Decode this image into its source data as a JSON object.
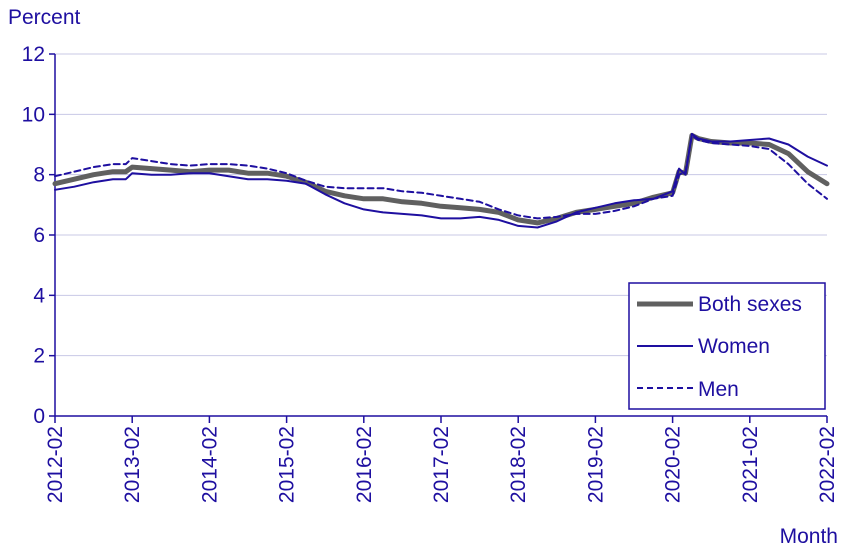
{
  "chart_data": {
    "type": "line",
    "ylabel": "Percent",
    "xlabel": "Month",
    "ylim": [
      0,
      12
    ],
    "y_ticks": [
      0,
      2,
      4,
      6,
      8,
      10,
      12
    ],
    "x_range": [
      "2012-02",
      "2022-02"
    ],
    "x_ticks": [
      "2012-02",
      "2013-02",
      "2014-02",
      "2015-02",
      "2016-02",
      "2017-02",
      "2018-02",
      "2019-02",
      "2020-02",
      "2021-02",
      "2022-02"
    ],
    "grid": "horizontal",
    "legend_position": "bottom-right",
    "series": [
      {
        "name": "Both sexes",
        "color": "#606060",
        "style": "thick-solid",
        "points": [
          [
            "2012-02",
            7.7
          ],
          [
            "2012-05",
            7.85
          ],
          [
            "2012-08",
            8.0
          ],
          [
            "2012-11",
            8.1
          ],
          [
            "2013-01",
            8.1
          ],
          [
            "2013-02",
            8.25
          ],
          [
            "2013-05",
            8.2
          ],
          [
            "2013-08",
            8.15
          ],
          [
            "2013-11",
            8.1
          ],
          [
            "2014-02",
            8.15
          ],
          [
            "2014-05",
            8.15
          ],
          [
            "2014-08",
            8.05
          ],
          [
            "2014-11",
            8.05
          ],
          [
            "2015-02",
            7.95
          ],
          [
            "2015-05",
            7.75
          ],
          [
            "2015-08",
            7.45
          ],
          [
            "2015-11",
            7.3
          ],
          [
            "2016-02",
            7.2
          ],
          [
            "2016-05",
            7.2
          ],
          [
            "2016-08",
            7.1
          ],
          [
            "2016-11",
            7.05
          ],
          [
            "2017-02",
            6.95
          ],
          [
            "2017-05",
            6.9
          ],
          [
            "2017-08",
            6.85
          ],
          [
            "2017-11",
            6.75
          ],
          [
            "2018-02",
            6.5
          ],
          [
            "2018-05",
            6.4
          ],
          [
            "2018-08",
            6.55
          ],
          [
            "2018-11",
            6.75
          ],
          [
            "2019-02",
            6.85
          ],
          [
            "2019-05",
            6.95
          ],
          [
            "2019-08",
            7.05
          ],
          [
            "2019-11",
            7.25
          ],
          [
            "2020-02",
            7.4
          ],
          [
            "2020-03",
            8.1
          ],
          [
            "2020-04",
            8.05
          ],
          [
            "2020-05",
            9.3
          ],
          [
            "2020-06",
            9.2
          ],
          [
            "2020-08",
            9.1
          ],
          [
            "2020-11",
            9.05
          ],
          [
            "2021-02",
            9.05
          ],
          [
            "2021-05",
            9.0
          ],
          [
            "2021-08",
            8.7
          ],
          [
            "2021-11",
            8.1
          ],
          [
            "2022-02",
            7.7
          ]
        ]
      },
      {
        "name": "Women",
        "color": "#1e0fa0",
        "style": "solid",
        "points": [
          [
            "2012-02",
            7.5
          ],
          [
            "2012-05",
            7.6
          ],
          [
            "2012-08",
            7.75
          ],
          [
            "2012-11",
            7.85
          ],
          [
            "2013-01",
            7.85
          ],
          [
            "2013-02",
            8.05
          ],
          [
            "2013-05",
            8.0
          ],
          [
            "2013-08",
            8.0
          ],
          [
            "2013-11",
            8.05
          ],
          [
            "2014-02",
            8.05
          ],
          [
            "2014-05",
            7.95
          ],
          [
            "2014-08",
            7.85
          ],
          [
            "2014-11",
            7.85
          ],
          [
            "2015-02",
            7.8
          ],
          [
            "2015-05",
            7.7
          ],
          [
            "2015-08",
            7.35
          ],
          [
            "2015-11",
            7.05
          ],
          [
            "2016-02",
            6.85
          ],
          [
            "2016-05",
            6.75
          ],
          [
            "2016-08",
            6.7
          ],
          [
            "2016-11",
            6.65
          ],
          [
            "2017-02",
            6.55
          ],
          [
            "2017-05",
            6.55
          ],
          [
            "2017-08",
            6.6
          ],
          [
            "2017-11",
            6.5
          ],
          [
            "2018-02",
            6.3
          ],
          [
            "2018-05",
            6.25
          ],
          [
            "2018-08",
            6.45
          ],
          [
            "2018-11",
            6.75
          ],
          [
            "2019-02",
            6.9
          ],
          [
            "2019-05",
            7.05
          ],
          [
            "2019-08",
            7.15
          ],
          [
            "2019-11",
            7.2
          ],
          [
            "2020-02",
            7.45
          ],
          [
            "2020-03",
            8.2
          ],
          [
            "2020-04",
            8.0
          ],
          [
            "2020-05",
            9.35
          ],
          [
            "2020-06",
            9.2
          ],
          [
            "2020-08",
            9.1
          ],
          [
            "2020-11",
            9.1
          ],
          [
            "2021-02",
            9.15
          ],
          [
            "2021-05",
            9.2
          ],
          [
            "2021-08",
            9.0
          ],
          [
            "2021-11",
            8.6
          ],
          [
            "2022-02",
            8.3
          ]
        ]
      },
      {
        "name": "Men",
        "color": "#1e0fa0",
        "style": "dashed",
        "points": [
          [
            "2012-02",
            7.95
          ],
          [
            "2012-05",
            8.1
          ],
          [
            "2012-08",
            8.25
          ],
          [
            "2012-11",
            8.35
          ],
          [
            "2013-01",
            8.35
          ],
          [
            "2013-02",
            8.55
          ],
          [
            "2013-05",
            8.45
          ],
          [
            "2013-08",
            8.35
          ],
          [
            "2013-11",
            8.3
          ],
          [
            "2014-02",
            8.35
          ],
          [
            "2014-05",
            8.35
          ],
          [
            "2014-08",
            8.3
          ],
          [
            "2014-11",
            8.2
          ],
          [
            "2015-02",
            8.05
          ],
          [
            "2015-05",
            7.8
          ],
          [
            "2015-08",
            7.6
          ],
          [
            "2015-11",
            7.55
          ],
          [
            "2016-02",
            7.55
          ],
          [
            "2016-05",
            7.55
          ],
          [
            "2016-08",
            7.45
          ],
          [
            "2016-11",
            7.4
          ],
          [
            "2017-02",
            7.3
          ],
          [
            "2017-05",
            7.2
          ],
          [
            "2017-08",
            7.1
          ],
          [
            "2017-11",
            6.85
          ],
          [
            "2018-02",
            6.65
          ],
          [
            "2018-05",
            6.55
          ],
          [
            "2018-08",
            6.6
          ],
          [
            "2018-11",
            6.7
          ],
          [
            "2019-02",
            6.7
          ],
          [
            "2019-05",
            6.8
          ],
          [
            "2019-08",
            6.95
          ],
          [
            "2019-11",
            7.2
          ],
          [
            "2020-02",
            7.3
          ],
          [
            "2020-03",
            8.0
          ],
          [
            "2020-04",
            8.1
          ],
          [
            "2020-05",
            9.3
          ],
          [
            "2020-06",
            9.15
          ],
          [
            "2020-08",
            9.05
          ],
          [
            "2020-11",
            9.0
          ],
          [
            "2021-02",
            8.95
          ],
          [
            "2021-05",
            8.85
          ],
          [
            "2021-08",
            8.35
          ],
          [
            "2021-11",
            7.7
          ],
          [
            "2022-02",
            7.2
          ]
        ]
      }
    ]
  },
  "colors": {
    "axis": "#1e0fa0",
    "text": "#1e0fa0",
    "grid": "#c8c8e6",
    "both_sexes": "#606060",
    "women": "#1e0fa0",
    "men": "#1e0fa0"
  }
}
